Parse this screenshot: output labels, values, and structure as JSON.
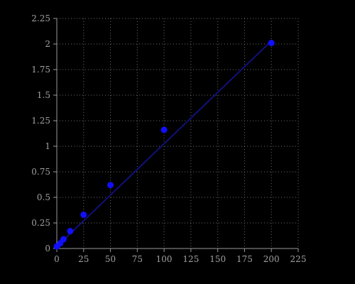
{
  "chart_data": {
    "type": "scatter",
    "title": "",
    "xlabel": "",
    "ylabel": "",
    "xlim": [
      0,
      225
    ],
    "ylim": [
      0,
      2.25
    ],
    "x_ticks": [
      0,
      25,
      50,
      75,
      100,
      125,
      150,
      175,
      200,
      225
    ],
    "x_tick_labels": [
      "0",
      "25",
      "50",
      "75",
      "100",
      "125",
      "150",
      "175",
      "200",
      "225"
    ],
    "y_ticks": [
      0,
      0.25,
      0.5,
      0.75,
      1,
      1.25,
      1.5,
      1.75,
      2,
      2.25
    ],
    "y_tick_labels": [
      "0",
      "0.25",
      "0.5",
      "0.75",
      "1",
      "1.25",
      "1.5",
      "1.75",
      "2",
      "2.25"
    ],
    "grid": true,
    "series": [
      {
        "x": [
          0,
          3.125,
          6.25,
          12.5,
          25,
          50,
          100,
          200
        ],
        "y": [
          0.02,
          0.05,
          0.09,
          0.17,
          0.33,
          0.62,
          1.16,
          2.01
        ]
      }
    ],
    "fit_line": {
      "x": [
        0,
        200
      ],
      "y": [
        0.02,
        2.03
      ]
    },
    "colors": {
      "background": "#000000",
      "axes": "#9a9a9a",
      "grid": "#6a6a6a",
      "tick_text": "#a0a0a0",
      "points": "#1010ff",
      "fit_line": "#10107a"
    }
  }
}
